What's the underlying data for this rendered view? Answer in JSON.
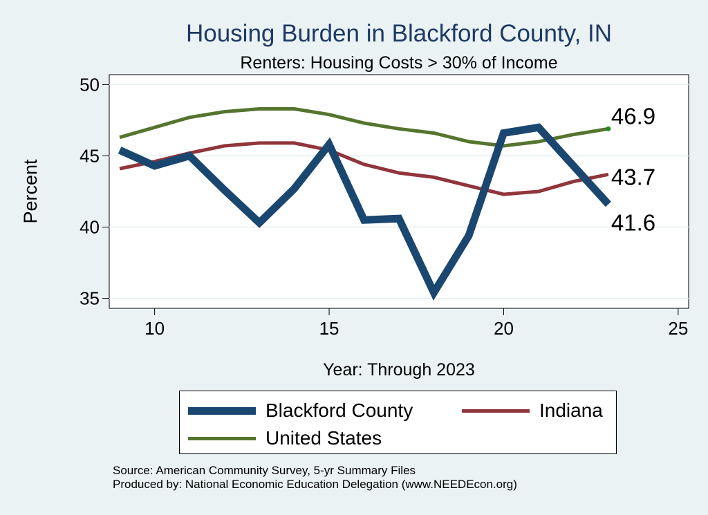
{
  "chart_data": {
    "type": "line",
    "title": "Housing Burden in Blackford County, IN",
    "subtitle": "Renters: Housing Costs > 30% of Income",
    "xlabel": "Year: Through 2023",
    "ylabel": "Percent",
    "xlim": [
      8.7,
      25.3
    ],
    "ylim": [
      34.3,
      50.7
    ],
    "xticks": [
      10,
      15,
      20,
      25
    ],
    "yticks": [
      35,
      40,
      45,
      50
    ],
    "grid": true,
    "legend_position": "bottom",
    "x": [
      9,
      10,
      11,
      12,
      13,
      14,
      15,
      16,
      17,
      18,
      19,
      20,
      21,
      22,
      23
    ],
    "series": [
      {
        "name": "Blackford County",
        "color": "#1a476f",
        "values": [
          45.4,
          44.3,
          45.0,
          42.6,
          40.3,
          42.7,
          45.8,
          40.5,
          40.6,
          35.4,
          39.4,
          46.6,
          47.0,
          44.3,
          41.6
        ],
        "end_label": "41.6"
      },
      {
        "name": "Indiana",
        "color": "#90353b",
        "values": [
          44.1,
          44.6,
          45.2,
          45.7,
          45.9,
          45.9,
          45.4,
          44.4,
          43.8,
          43.5,
          42.9,
          42.3,
          42.5,
          43.2,
          43.7
        ],
        "end_label": "43.7"
      },
      {
        "name": "United States",
        "color": "#55752f",
        "values": [
          46.3,
          47.0,
          47.7,
          48.1,
          48.3,
          48.3,
          47.9,
          47.3,
          46.9,
          46.6,
          46.0,
          45.7,
          46.0,
          46.5,
          46.9
        ],
        "end_label": "46.9"
      }
    ]
  },
  "legend": {
    "items": [
      "Blackford County",
      "Indiana",
      "United States"
    ]
  },
  "source": {
    "line1": "Source: American Community Survey, 5-yr Summary Files",
    "line2": "Produced by: National Economic Education Delegation (www.NEEDEcon.org)"
  }
}
